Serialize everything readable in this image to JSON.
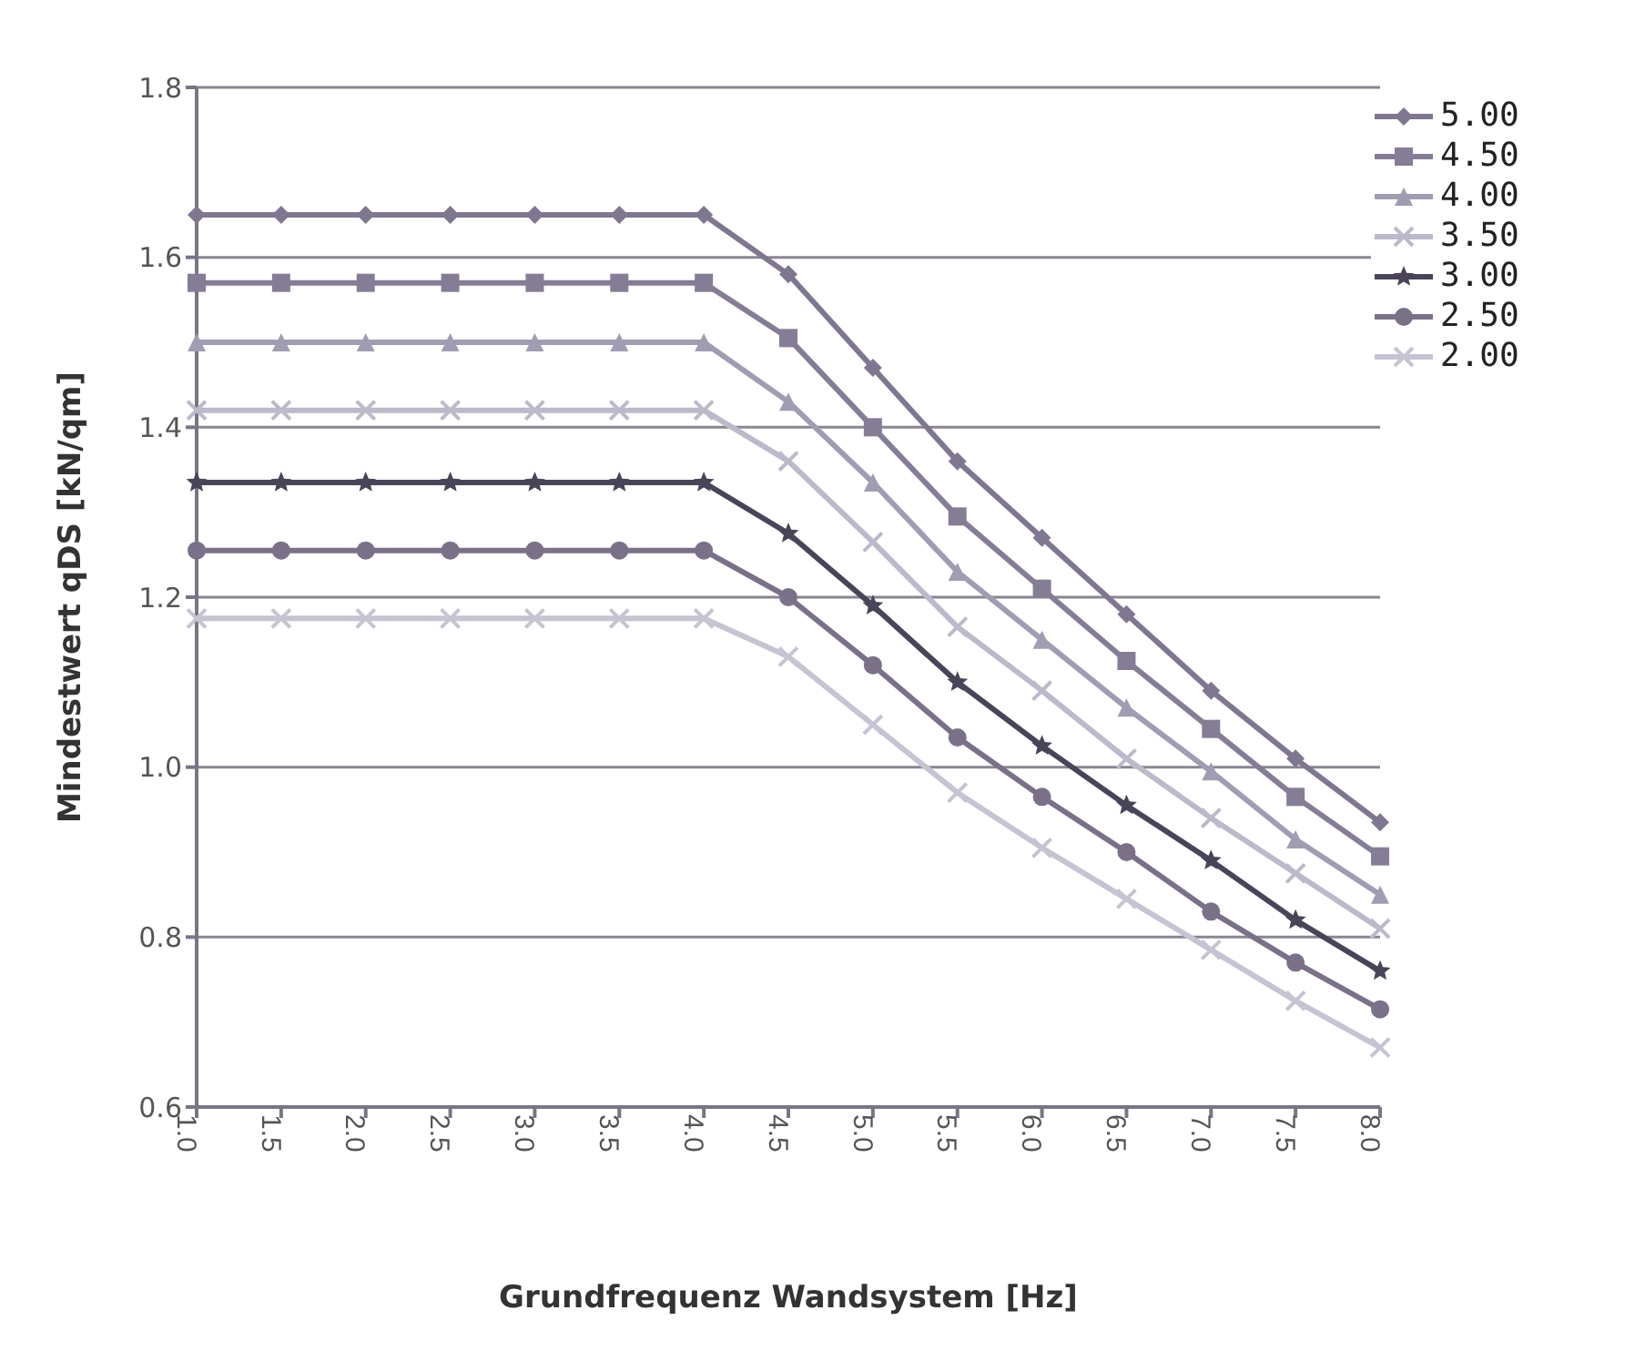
{
  "chart_data": {
    "type": "line",
    "xlabel": "Grundfrequenz Wandsystem [Hz]",
    "ylabel": "Mindestwert qDS [kN/qm]",
    "categories": [
      "1.0",
      "1.5",
      "2.0",
      "2.5",
      "3.0",
      "3.5",
      "4.0",
      "4.5",
      "5.0",
      "5.5",
      "6.0",
      "6.5",
      "7.0",
      "7.5",
      "8.0"
    ],
    "series": [
      {
        "name": "5.00",
        "color": "#7f7790",
        "marker": "diamond",
        "values": [
          1.65,
          1.65,
          1.65,
          1.65,
          1.65,
          1.65,
          1.65,
          1.58,
          1.47,
          1.36,
          1.27,
          1.18,
          1.09,
          1.01,
          0.935
        ]
      },
      {
        "name": "4.50",
        "color": "#857d95",
        "marker": "square",
        "values": [
          1.57,
          1.57,
          1.57,
          1.57,
          1.57,
          1.57,
          1.57,
          1.505,
          1.4,
          1.295,
          1.21,
          1.125,
          1.045,
          0.965,
          0.895
        ]
      },
      {
        "name": "4.00",
        "color": "#a29cb2",
        "marker": "triangle",
        "values": [
          1.5,
          1.5,
          1.5,
          1.5,
          1.5,
          1.5,
          1.5,
          1.43,
          1.335,
          1.23,
          1.15,
          1.07,
          0.995,
          0.915,
          0.85
        ]
      },
      {
        "name": "3.50",
        "color": "#bdb9cb",
        "marker": "cross",
        "values": [
          1.42,
          1.42,
          1.42,
          1.42,
          1.42,
          1.42,
          1.42,
          1.36,
          1.265,
          1.165,
          1.09,
          1.01,
          0.94,
          0.875,
          0.81
        ]
      },
      {
        "name": "3.00",
        "color": "#4a4459",
        "marker": "star",
        "values": [
          1.335,
          1.335,
          1.335,
          1.335,
          1.335,
          1.335,
          1.335,
          1.275,
          1.19,
          1.1,
          1.025,
          0.955,
          0.89,
          0.82,
          0.76
        ]
      },
      {
        "name": "2.50",
        "color": "#7a7189",
        "marker": "circle",
        "values": [
          1.255,
          1.255,
          1.255,
          1.255,
          1.255,
          1.255,
          1.255,
          1.2,
          1.12,
          1.035,
          0.965,
          0.9,
          0.83,
          0.77,
          0.715
        ]
      },
      {
        "name": "2.00",
        "color": "#c6c3d2",
        "marker": "cross",
        "values": [
          1.175,
          1.175,
          1.175,
          1.175,
          1.175,
          1.175,
          1.175,
          1.13,
          1.05,
          0.97,
          0.905,
          0.845,
          0.785,
          0.725,
          0.67
        ]
      }
    ],
    "ylim": [
      0.6,
      1.8
    ],
    "yticks": [
      {
        "value": 0.6,
        "label": "0.6"
      },
      {
        "value": 0.8,
        "label": "0.8"
      },
      {
        "value": 1.0,
        "label": "1.0"
      },
      {
        "value": 1.2,
        "label": "1.2"
      },
      {
        "value": 1.4,
        "label": "1.4"
      },
      {
        "value": 1.6,
        "label": "1.6"
      },
      {
        "value": 1.8,
        "label": "1.8"
      }
    ],
    "grid": "y",
    "legend": "top right"
  }
}
